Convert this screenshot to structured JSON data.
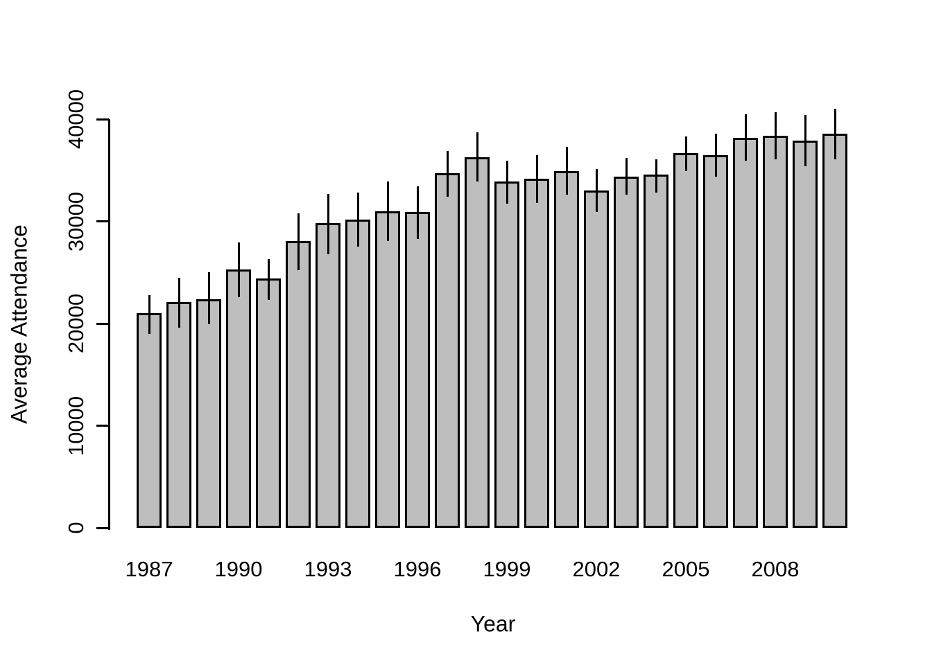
{
  "figure": {
    "background": "#ffffff",
    "text_color": "#000000"
  },
  "chart_data": {
    "type": "bar",
    "title": "",
    "xlabel": "Year",
    "ylabel": "Average Attendance",
    "categories": [
      1987,
      1988,
      1989,
      1990,
      1991,
      1992,
      1993,
      1994,
      1995,
      1996,
      1997,
      1998,
      1999,
      2000,
      2001,
      2002,
      2003,
      2004,
      2005,
      2006,
      2007,
      2008,
      2009,
      2010
    ],
    "values": [
      21000,
      22100,
      22400,
      25300,
      24400,
      28100,
      29800,
      30200,
      31000,
      30900,
      34700,
      36300,
      33900,
      34200,
      34900,
      33000,
      34400,
      34600,
      36700,
      36500,
      38200,
      38400,
      37900,
      38600
    ],
    "error_low": [
      19000,
      19600,
      19900,
      22600,
      22300,
      25200,
      26800,
      27500,
      28100,
      28300,
      32400,
      33900,
      31700,
      31800,
      32600,
      30900,
      32600,
      32800,
      34900,
      34400,
      35900,
      36100,
      35400,
      36100
    ],
    "error_high": [
      22800,
      24500,
      25000,
      27900,
      26300,
      30800,
      32700,
      32800,
      33900,
      33400,
      36900,
      38700,
      35900,
      36500,
      37300,
      35100,
      36200,
      36100,
      38300,
      38600,
      40500,
      40700,
      40400,
      41000
    ],
    "x_tick_labels": [
      "1987",
      "1990",
      "1993",
      "1996",
      "1999",
      "2002",
      "2005",
      "2008"
    ],
    "x_tick_every": 3,
    "yticks": [
      0,
      10000,
      20000,
      30000,
      40000
    ],
    "ytick_labels": [
      "0",
      "10000",
      "20000",
      "30000",
      "40000"
    ],
    "ylim": [
      0,
      42000
    ],
    "grid": false,
    "legend": false,
    "bar_fill": "#bebebe",
    "bar_border": "#000000",
    "error_color": "#000000",
    "axis_color": "#000000"
  }
}
